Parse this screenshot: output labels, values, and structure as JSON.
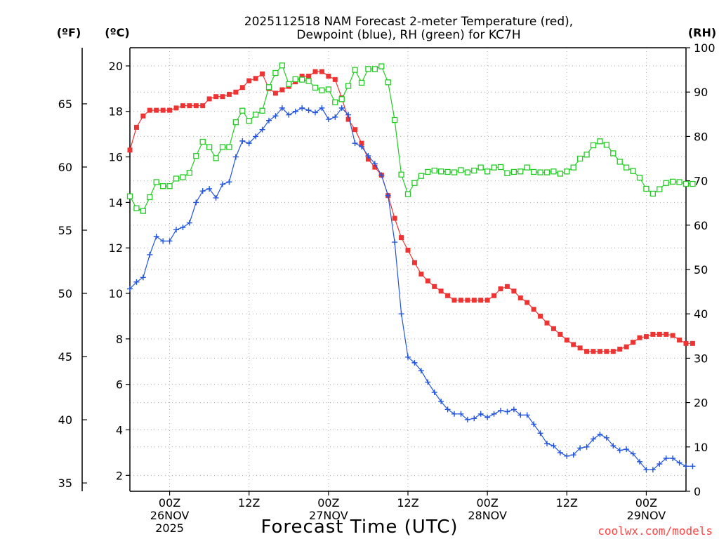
{
  "chart_data": {
    "type": "line",
    "title_lines": [
      "2025112518 NAM Forecast 2-meter Temperature (red),",
      "Dewpoint (blue), RH (green) for KC7H"
    ],
    "xlabel": "Forecast Time (UTC)",
    "credit": "coolwx.com/models",
    "units": {
      "fahrenheit": "(ºF)",
      "celsius": "(ºC)",
      "rh": "(RH)"
    },
    "x_hours_from_start_range": [
      0,
      84
    ],
    "x_ticks": [
      {
        "hour": 6,
        "lines": [
          "00Z",
          "26NOV",
          "2025"
        ]
      },
      {
        "hour": 18,
        "lines": [
          "12Z"
        ]
      },
      {
        "hour": 30,
        "lines": [
          "00Z",
          "27NOV"
        ]
      },
      {
        "hour": 42,
        "lines": [
          "12Z"
        ]
      },
      {
        "hour": 54,
        "lines": [
          "00Z",
          "28NOV"
        ]
      },
      {
        "hour": 66,
        "lines": [
          "12Z"
        ]
      },
      {
        "hour": 78,
        "lines": [
          "00Z",
          "29NOV"
        ]
      }
    ],
    "y_celsius": {
      "range": [
        1.3,
        20.8
      ],
      "ticks": [
        2,
        4,
        6,
        8,
        10,
        12,
        14,
        16,
        18,
        20
      ]
    },
    "y_fahrenheit": {
      "ticks": [
        35,
        40,
        45,
        50,
        55,
        60,
        65
      ]
    },
    "y_rh": {
      "range": [
        0,
        100
      ],
      "ticks": [
        0,
        10,
        20,
        30,
        40,
        50,
        60,
        70,
        80,
        90,
        100
      ]
    },
    "series": [
      {
        "name": "2-meter Temperature",
        "units": "°C",
        "color": "#ee3333",
        "marker": "filled-square",
        "values": [
          16.3,
          17.3,
          17.8,
          18.05,
          18.05,
          18.05,
          18.05,
          18.15,
          18.25,
          18.25,
          18.25,
          18.25,
          18.55,
          18.65,
          18.65,
          18.75,
          18.85,
          19.05,
          19.35,
          19.45,
          19.65,
          19.0,
          18.8,
          18.95,
          19.1,
          19.3,
          19.55,
          19.55,
          19.75,
          19.75,
          19.55,
          19.4,
          18.6,
          17.65,
          17.2,
          16.6,
          15.9,
          15.55,
          15.2,
          14.3,
          13.3,
          12.45,
          11.9,
          11.35,
          10.85,
          10.55,
          10.3,
          10.1,
          9.9,
          9.7,
          9.7,
          9.7,
          9.7,
          9.7,
          9.7,
          9.9,
          10.2,
          10.3,
          10.1,
          9.8,
          9.6,
          9.3,
          9.0,
          8.7,
          8.45,
          8.2,
          7.95,
          7.75,
          7.6,
          7.45,
          7.45,
          7.45,
          7.45,
          7.45,
          7.55,
          7.65,
          7.85,
          8.05,
          8.1,
          8.2,
          8.2,
          8.2,
          8.15,
          7.95,
          7.8,
          7.8
        ]
      },
      {
        "name": "Dewpoint",
        "units": "°C",
        "color": "#2255dd",
        "marker": "plus",
        "values": [
          10.2,
          10.5,
          10.7,
          11.7,
          12.5,
          12.3,
          12.3,
          12.8,
          12.9,
          13.1,
          14.0,
          14.5,
          14.6,
          14.2,
          14.8,
          14.9,
          16.0,
          16.7,
          16.6,
          16.9,
          17.2,
          17.6,
          17.8,
          18.15,
          17.85,
          18.0,
          18.15,
          18.05,
          17.95,
          18.15,
          17.65,
          17.75,
          18.15,
          17.85,
          16.6,
          16.45,
          16.05,
          15.7,
          15.2,
          14.3,
          12.25,
          9.1,
          7.2,
          6.95,
          6.6,
          6.1,
          5.65,
          5.25,
          4.9,
          4.7,
          4.7,
          4.45,
          4.5,
          4.7,
          4.55,
          4.7,
          4.85,
          4.8,
          4.9,
          4.65,
          4.65,
          4.25,
          3.85,
          3.4,
          3.3,
          3.0,
          2.85,
          2.9,
          3.2,
          3.25,
          3.6,
          3.8,
          3.65,
          3.3,
          3.1,
          3.15,
          2.95,
          2.6,
          2.25,
          2.25,
          2.5,
          2.75,
          2.75,
          2.55,
          2.4,
          2.4
        ]
      },
      {
        "name": "RH",
        "units": "%",
        "color": "#22cc22",
        "marker": "open-square",
        "values": [
          66.5,
          63.8,
          63.2,
          66.3,
          69.7,
          68.8,
          68.8,
          70.5,
          70.8,
          71.8,
          75.6,
          78.8,
          77.6,
          75.1,
          77.6,
          77.6,
          83.2,
          85.8,
          83.5,
          84.9,
          85.8,
          91.1,
          94.3,
          96.0,
          91.8,
          92.9,
          92.8,
          92.5,
          91.0,
          90.4,
          90.6,
          87.7,
          88.4,
          91.4,
          95.0,
          92.1,
          95.2,
          95.2,
          95.8,
          92.2,
          83.7,
          71.4,
          67.0,
          69.5,
          71.1,
          72.0,
          72.3,
          72.1,
          72.0,
          71.9,
          72.4,
          71.9,
          72.3,
          73.0,
          72.1,
          73.0,
          73.1,
          71.7,
          72.0,
          72.1,
          73.0,
          72.0,
          71.9,
          71.9,
          72.1,
          71.6,
          72.1,
          73.0,
          75.0,
          75.9,
          78.0,
          78.9,
          78.1,
          76.2,
          74.3,
          73.0,
          72.2,
          70.7,
          68.2,
          67.1,
          68.1,
          69.5,
          69.8,
          69.7,
          69.3,
          69.3
        ]
      }
    ]
  }
}
